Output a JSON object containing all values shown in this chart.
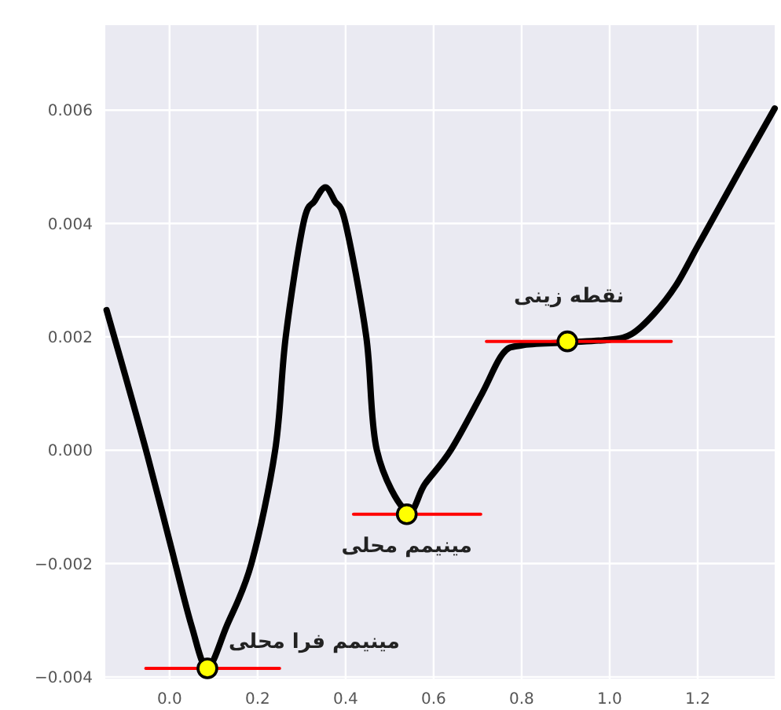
{
  "chart_data": {
    "type": "line",
    "xlim": [
      -0.146,
      1.375
    ],
    "ylim": [
      -0.00403,
      0.0075
    ],
    "xticks": [
      {
        "value": 0,
        "label": "0.0"
      },
      {
        "value": 0.2,
        "label": "0.2"
      },
      {
        "value": 0.4,
        "label": "0.4"
      },
      {
        "value": 0.6,
        "label": "0.6"
      },
      {
        "value": 0.8,
        "label": "0.8"
      },
      {
        "value": 1.0,
        "label": "1.0"
      },
      {
        "value": 1.2,
        "label": "1.2"
      }
    ],
    "yticks": [
      {
        "value": -0.004,
        "label": "−0.004"
      },
      {
        "value": -0.002,
        "label": "−0.002"
      },
      {
        "value": 0,
        "label": "0.000"
      },
      {
        "value": 0.002,
        "label": "0.002"
      },
      {
        "value": 0.004,
        "label": "0.004"
      },
      {
        "value": 0.006,
        "label": "0.006"
      }
    ],
    "grid": true,
    "series": [
      {
        "color": "#000000",
        "line_style": "solid",
        "x": [
          -0.143,
          -0.1,
          -0.05,
          0.0,
          0.05,
          0.086,
          0.13,
          0.186,
          0.24,
          0.264,
          0.304,
          0.33,
          0.354,
          0.375,
          0.4,
          0.447,
          0.471,
          0.539,
          0.58,
          0.639,
          0.71,
          0.757,
          0.8,
          0.9,
          1.0,
          1.05,
          1.1,
          1.15,
          1.2,
          1.25,
          1.3,
          1.375
        ],
        "values": [
          0.00247,
          0.0013,
          -0.0001,
          -0.0016,
          -0.0031,
          -0.00383,
          -0.0031,
          -0.002,
          0.0,
          0.002,
          0.004,
          0.0044,
          0.00464,
          0.0044,
          0.004,
          0.002,
          0.0,
          -0.00108,
          -0.0006,
          0.0,
          0.001,
          0.0017,
          0.00185,
          0.0019,
          0.00195,
          0.00205,
          0.0024,
          0.0029,
          0.0036,
          0.0043,
          0.005,
          0.00603
        ]
      },
      {
        "type": "line",
        "color": "#ff0000",
        "line_style": "solid",
        "x": [
          -0.054,
          0.25
        ],
        "values": [
          -0.00385,
          -0.00385
        ]
      },
      {
        "type": "line",
        "color": "#ff0000",
        "line_style": "solid",
        "x": [
          0.418,
          0.707
        ],
        "values": [
          -0.00113,
          -0.00113
        ]
      },
      {
        "type": "line",
        "color": "#ff0000",
        "line_style": "solid",
        "x": [
          0.72,
          1.14
        ],
        "values": [
          0.00192,
          0.00192
        ]
      },
      {
        "type": "scatter",
        "color": "#ffff00",
        "marker": "circle",
        "x": [
          0.086,
          0.539,
          0.904
        ],
        "values": [
          -0.00385,
          -0.00113,
          0.00192
        ]
      }
    ],
    "annotations": [
      {
        "text": "مینیمم فرا محلی",
        "x": 0.086,
        "y": -0.00385
      },
      {
        "text": "مینیمم محلی",
        "x": 0.539,
        "y": -0.00113
      },
      {
        "text": "نقطه زینی",
        "x": 0.904,
        "y": 0.00192
      }
    ]
  }
}
